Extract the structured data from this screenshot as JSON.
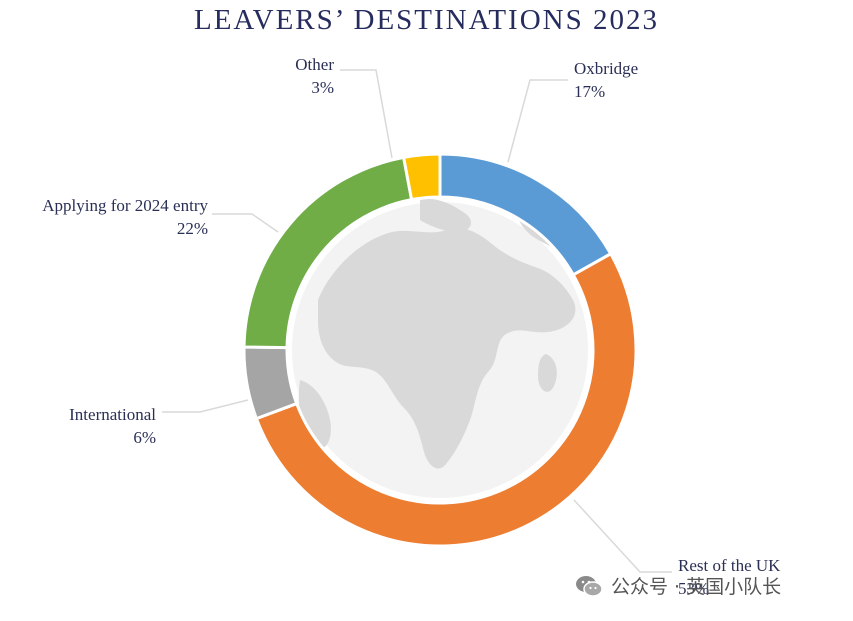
{
  "chart_data": {
    "type": "pie",
    "title": "LEAVERS’ DESTINATIONS 2023",
    "donut": true,
    "slices": [
      {
        "label": "Oxbridge",
        "value_label": "17%",
        "value": 17,
        "color": "#5b9bd5"
      },
      {
        "label": "Rest of the UK",
        "value_label": "53%",
        "value": 53,
        "color": "#ed7d31"
      },
      {
        "label": "International",
        "value_label": "6%",
        "value": 6,
        "color": "#a5a5a5"
      },
      {
        "label": "Applying for 2024 entry",
        "value_label": "22%",
        "value": 22,
        "color": "#70ad47"
      },
      {
        "label": "Other",
        "value_label": "3%",
        "value": 3,
        "color": "#ffc000"
      }
    ]
  },
  "colors": {
    "title": "#262d5e",
    "globe_land": "#d9d9d9",
    "leader_line": "#d9d9d9"
  },
  "watermark": {
    "text": "公众号 · 英国小队长",
    "icon": "wechat-icon"
  }
}
